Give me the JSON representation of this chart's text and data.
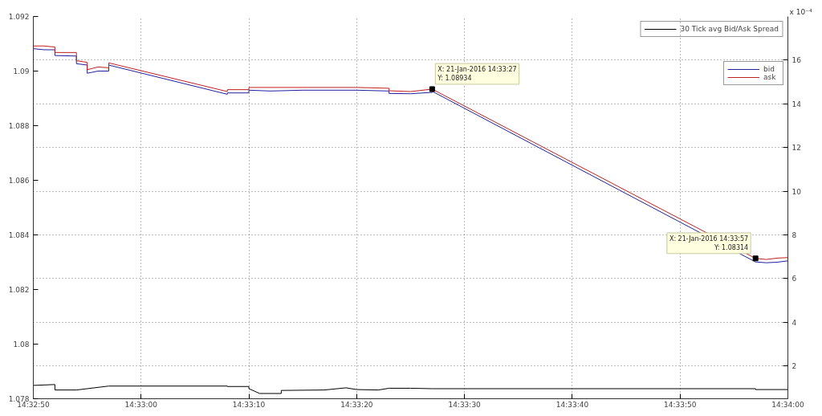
{
  "chart_data": {
    "type": "line",
    "y2label": "x 10⁻⁴",
    "xlim": [
      14.547222,
      14.566667
    ],
    "xticks": [
      {
        "value": 14.547222,
        "label": "14:32:50"
      },
      {
        "value": 14.55,
        "label": "14:33:00"
      },
      {
        "value": 14.552778,
        "label": "14:33:10"
      },
      {
        "value": 14.555556,
        "label": "14:33:20"
      },
      {
        "value": 14.558333,
        "label": "14:33:30"
      },
      {
        "value": 14.561111,
        "label": "14:33:40"
      },
      {
        "value": 14.563889,
        "label": "14:33:50"
      },
      {
        "value": 14.566667,
        "label": "14:34:00"
      }
    ],
    "ylim": [
      1.078,
      1.092
    ],
    "yticks": [
      1.078,
      1.08,
      1.082,
      1.084,
      1.086,
      1.088,
      1.09,
      1.092
    ],
    "y2lim": [
      0.5,
      18
    ],
    "y2ticks": [
      2,
      4,
      6,
      8,
      10,
      12,
      14,
      16
    ],
    "grid": true,
    "legend": "top right",
    "marker": "none",
    "line_style": "solid",
    "series": [
      {
        "name": "bid",
        "color": "#2020a0",
        "x": [
          14.547222,
          14.5475,
          14.547778,
          14.547778,
          14.548333,
          14.548333,
          14.548611,
          14.548611,
          14.548889,
          14.549167,
          14.549167,
          14.552222,
          14.552222,
          14.552778,
          14.552778,
          14.553333,
          14.554167,
          14.555556,
          14.556389,
          14.556389,
          14.556944,
          14.5575,
          14.5575,
          14.565833,
          14.566111,
          14.566389,
          14.566667
        ],
        "values": [
          1.09082,
          1.09078,
          1.09078,
          1.09057,
          1.09055,
          1.09027,
          1.09022,
          1.08992,
          1.09,
          1.09,
          1.09022,
          1.08915,
          1.0892,
          1.0892,
          1.0893,
          1.08927,
          1.0893,
          1.0893,
          1.08927,
          1.08918,
          1.08917,
          1.08922,
          1.08926,
          1.08301,
          1.08298,
          1.083,
          1.08305
        ]
      },
      {
        "name": "ask",
        "color": "#c02020",
        "x": [
          14.547222,
          14.5475,
          14.547778,
          14.547778,
          14.548333,
          14.548333,
          14.548611,
          14.548611,
          14.548889,
          14.549167,
          14.549167,
          14.552222,
          14.552222,
          14.552778,
          14.552778,
          14.554167,
          14.555556,
          14.556389,
          14.556389,
          14.556944,
          14.5575,
          14.565833,
          14.566111,
          14.566389,
          14.566667
        ],
        "values": [
          1.09092,
          1.09092,
          1.09088,
          1.09068,
          1.09068,
          1.09038,
          1.09032,
          1.09005,
          1.09015,
          1.09012,
          1.0903,
          1.08925,
          1.08932,
          1.08932,
          1.0894,
          1.0894,
          1.0894,
          1.08937,
          1.08928,
          1.08925,
          1.08934,
          1.08314,
          1.0831,
          1.08315,
          1.08317
        ]
      },
      {
        "name": "30 Tick avg Bid/Ask Spread",
        "color": "#000000",
        "axis": "y2",
        "x": [
          14.547222,
          14.547778,
          14.547778,
          14.548333,
          14.549167,
          14.552222,
          14.552222,
          14.552778,
          14.552778,
          14.553056,
          14.553611,
          14.553611,
          14.554722,
          14.555278,
          14.555556,
          14.556111,
          14.556389,
          14.556944,
          14.5575,
          14.565833,
          14.565833,
          14.566667
        ],
        "values": [
          1.11,
          1.15,
          0.9,
          0.9,
          1.08,
          1.08,
          1.06,
          1.06,
          0.96,
          0.74,
          0.74,
          0.88,
          0.9,
          1.0,
          0.92,
          0.9,
          0.98,
          0.98,
          0.96,
          0.96,
          0.92,
          0.92
        ]
      }
    ],
    "annotations": [
      {
        "text": "X: 21-Jan-2016 14:33:27\nY: 1.08934",
        "x": 14.5575,
        "y": 1.08934
      },
      {
        "text": "X: 21-Jan-2016 14:33:57\nY: 1.08314",
        "x": 14.565833,
        "y": 1.08314
      }
    ]
  }
}
